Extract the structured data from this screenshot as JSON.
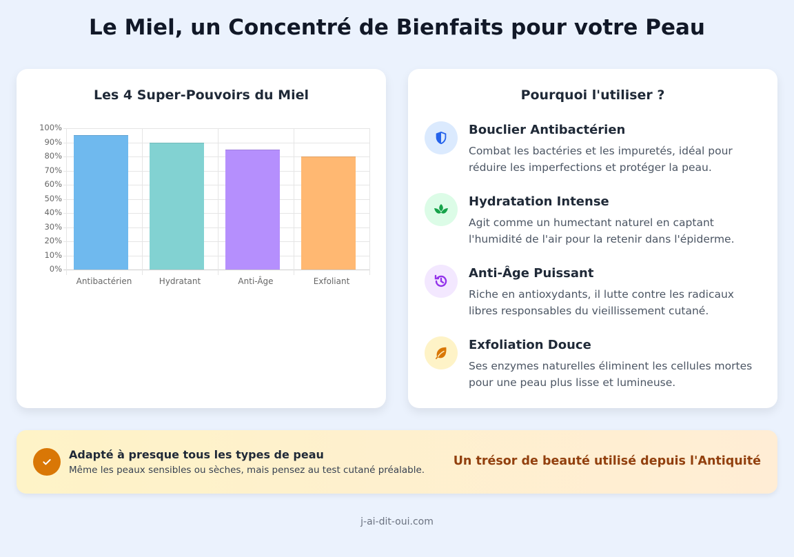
{
  "page": {
    "title": "Le Miel, un Concentré de Bienfaits pour votre Peau"
  },
  "chart_card": {
    "title": "Les 4 Super-Pouvoirs du Miel"
  },
  "chart_data": {
    "type": "bar",
    "title": "Les 4 Super-Pouvoirs du Miel",
    "categories": [
      "Antibactérien",
      "Hydratant",
      "Anti-Âge",
      "Exfoliant"
    ],
    "values": [
      95,
      90,
      85,
      80
    ],
    "colors": [
      "#6fb9ee",
      "#82d2d2",
      "#b58ffd",
      "#ffb872"
    ],
    "xlabel": "",
    "ylabel": "",
    "ylim": [
      0,
      100
    ],
    "yticks": [
      "0%",
      "10%",
      "20%",
      "30%",
      "40%",
      "50%",
      "60%",
      "70%",
      "80%",
      "90%",
      "100%"
    ],
    "grid": true,
    "legend": "none"
  },
  "list_card": {
    "title": "Pourquoi l'utiliser ?",
    "items": [
      {
        "icon": "shield-icon",
        "title": "Bouclier Antibactérien",
        "desc": "Combat les bactéries et les impuretés, idéal pour réduire les imperfections et protéger la peau.",
        "bg": "#dbeafe",
        "fg": "#2563eb"
      },
      {
        "icon": "lotus-icon",
        "title": "Hydratation Intense",
        "desc": "Agit comme un humectant naturel en captant l'humidité de l'air pour la retenir dans l'épiderme.",
        "bg": "#dcfce7",
        "fg": "#16a34a"
      },
      {
        "icon": "history-icon",
        "title": "Anti-Âge Puissant",
        "desc": "Riche en antioxydants, il lutte contre les radicaux libres responsables du vieillissement cutané.",
        "bg": "#f3e8ff",
        "fg": "#9333ea"
      },
      {
        "icon": "leaf-icon",
        "title": "Exfoliation Douce",
        "desc": "Ses enzymes naturelles éliminent les cellules mortes pour une peau plus lisse et lumineuse.",
        "bg": "#fef3c7",
        "fg": "#d97706"
      }
    ]
  },
  "banner": {
    "icon": "check-icon",
    "title": "Adapté à presque tous les types de peau",
    "subtitle": "Même les peaux sensibles ou sèches, mais pensez au test cutané préalable.",
    "tagline": "Un trésor de beauté utilisé depuis l'Antiquité"
  },
  "footer": {
    "text": "j-ai-dit-oui.com"
  }
}
